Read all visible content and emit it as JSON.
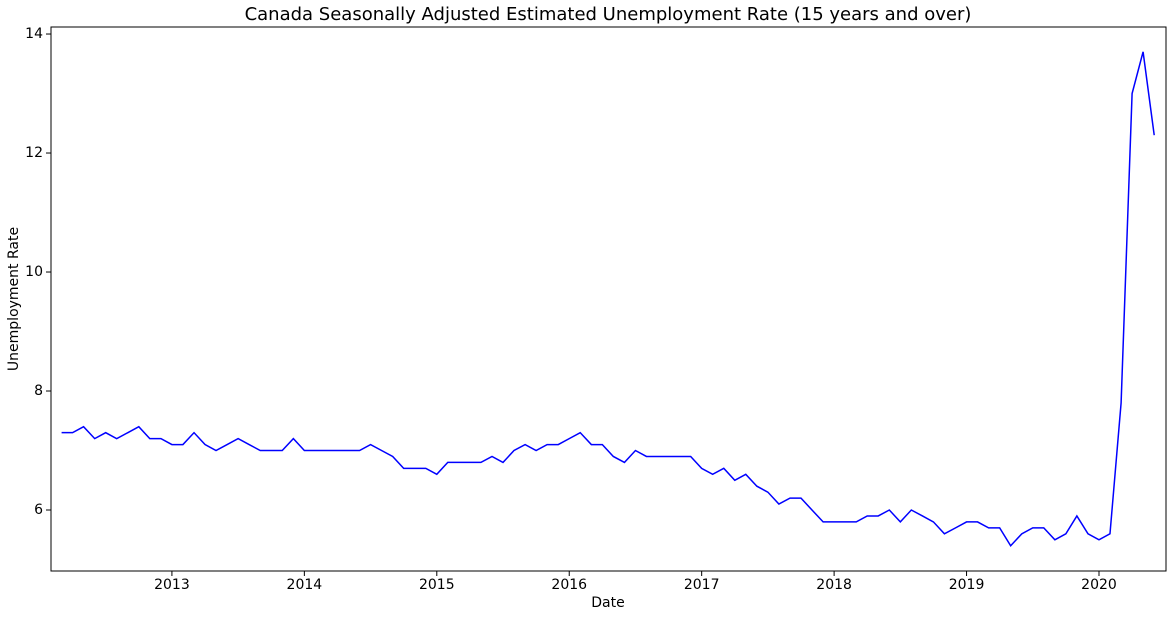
{
  "chart_data": {
    "type": "line",
    "title": "Canada Seasonally Adjusted Estimated Unemployment Rate (15 years and over)",
    "x_label": "Date",
    "y_label": "Unemployment Rate",
    "x": [
      2012.167,
      2012.25,
      2012.333,
      2012.417,
      2012.5,
      2012.583,
      2012.667,
      2012.75,
      2012.833,
      2012.917,
      2013,
      2013.083,
      2013.167,
      2013.25,
      2013.333,
      2013.417,
      2013.5,
      2013.583,
      2013.667,
      2013.75,
      2013.833,
      2013.917,
      2014,
      2014.083,
      2014.167,
      2014.25,
      2014.333,
      2014.417,
      2014.5,
      2014.583,
      2014.667,
      2014.75,
      2014.833,
      2014.917,
      2015,
      2015.083,
      2015.167,
      2015.25,
      2015.333,
      2015.417,
      2015.5,
      2015.583,
      2015.667,
      2015.75,
      2015.833,
      2015.917,
      2016,
      2016.083,
      2016.167,
      2016.25,
      2016.333,
      2016.417,
      2016.5,
      2016.583,
      2016.667,
      2016.75,
      2016.833,
      2016.917,
      2017,
      2017.083,
      2017.167,
      2017.25,
      2017.333,
      2017.417,
      2017.5,
      2017.583,
      2017.667,
      2017.75,
      2017.833,
      2017.917,
      2018,
      2018.083,
      2018.167,
      2018.25,
      2018.333,
      2018.417,
      2018.5,
      2018.583,
      2018.667,
      2018.75,
      2018.833,
      2018.917,
      2019,
      2019.083,
      2019.167,
      2019.25,
      2019.333,
      2019.417,
      2019.5,
      2019.583,
      2019.667,
      2019.75,
      2019.833,
      2019.917,
      2020,
      2020.083,
      2020.167,
      2020.25,
      2020.333,
      2020.417
    ],
    "series": [
      {
        "color": "#0000ff",
        "values": [
          7.3,
          7.3,
          7.4,
          7.2,
          7.3,
          7.2,
          7.3,
          7.4,
          7.2,
          7.2,
          7.1,
          7.1,
          7.3,
          7.1,
          7.0,
          7.1,
          7.2,
          7.1,
          7.0,
          7.0,
          7.0,
          7.2,
          7.0,
          7.0,
          7.0,
          7.0,
          7.0,
          7.0,
          7.1,
          7.0,
          6.9,
          6.7,
          6.7,
          6.7,
          6.6,
          6.8,
          6.8,
          6.8,
          6.8,
          6.9,
          6.8,
          7.0,
          7.1,
          7.0,
          7.1,
          7.1,
          7.2,
          7.3,
          7.1,
          7.1,
          6.9,
          6.8,
          7.0,
          6.9,
          6.9,
          6.9,
          6.9,
          6.9,
          6.7,
          6.6,
          6.7,
          6.5,
          6.6,
          6.4,
          6.3,
          6.1,
          6.2,
          6.2,
          6.0,
          5.8,
          5.8,
          5.8,
          5.8,
          5.9,
          5.9,
          6.0,
          5.8,
          6.0,
          5.9,
          5.8,
          5.6,
          5.7,
          5.8,
          5.8,
          5.7,
          5.7,
          5.4,
          5.6,
          5.7,
          5.7,
          5.5,
          5.6,
          5.9,
          5.6,
          5.5,
          5.6,
          7.8,
          13.0,
          13.7,
          12.3
        ]
      }
    ],
    "xlim": [
      2012.087,
      2020.506
    ],
    "xticks": [
      2013,
      2014,
      2015,
      2016,
      2017,
      2018,
      2019,
      2020
    ],
    "ylim": [
      4.975,
      14.118
    ],
    "yticks": [
      6,
      8,
      10,
      12,
      14
    ],
    "grid": false
  }
}
